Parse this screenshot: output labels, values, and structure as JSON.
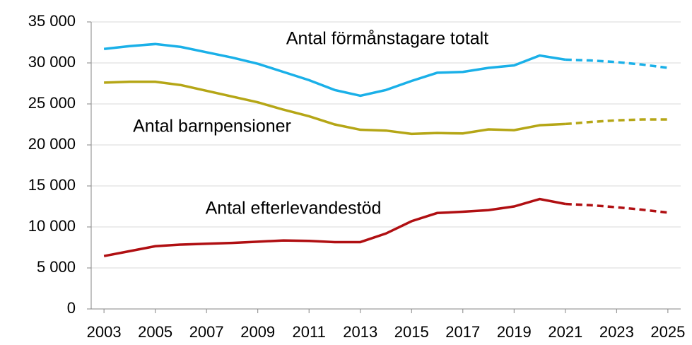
{
  "chart_data": {
    "type": "line",
    "x": [
      2003,
      2004,
      2005,
      2006,
      2007,
      2008,
      2009,
      2010,
      2011,
      2012,
      2013,
      2014,
      2015,
      2016,
      2017,
      2018,
      2019,
      2020,
      2021,
      2022,
      2023,
      2024,
      2025
    ],
    "series": [
      {
        "name": "Antal förmånstagare totalt",
        "color": "#1ab0e8",
        "values": [
          31700,
          32050,
          32300,
          31950,
          31300,
          30650,
          29900,
          28900,
          27900,
          26700,
          26000,
          26700,
          27800,
          28800,
          28900,
          29400,
          29700,
          30900,
          30400,
          30300,
          30100,
          29800,
          29400
        ]
      },
      {
        "name": "Antal barnpensioner",
        "color": "#b5a616",
        "values": [
          27600,
          27700,
          27700,
          27300,
          26600,
          25900,
          25200,
          24300,
          23500,
          22500,
          21850,
          21750,
          21350,
          21450,
          21400,
          21900,
          21800,
          22400,
          22550,
          22800,
          23000,
          23100,
          23100
        ]
      },
      {
        "name": "Antal efterlevandestöd",
        "color": "#b00f12",
        "values": [
          6450,
          7050,
          7650,
          7850,
          7950,
          8050,
          8200,
          8350,
          8300,
          8150,
          8150,
          9200,
          10700,
          11700,
          11850,
          12050,
          12500,
          13400,
          12800,
          12650,
          12400,
          12100,
          11750
        ]
      }
    ],
    "forecast_start": 2021,
    "xlim": [
      2002.5,
      2025.5
    ],
    "xticks": [
      2003,
      2005,
      2007,
      2009,
      2011,
      2013,
      2015,
      2017,
      2019,
      2021,
      2023,
      2025
    ],
    "ylim": [
      0,
      35000
    ],
    "yticks": [
      0,
      {
        "value": 5000,
        "label": "5 000"
      },
      {
        "value": 10000,
        "label": "10 000"
      },
      {
        "value": 15000,
        "label": "15 000"
      },
      {
        "value": 20000,
        "label": "20 000"
      },
      {
        "value": 25000,
        "label": "25 000"
      },
      {
        "value": 30000,
        "label": "30 000"
      },
      {
        "value": 35000,
        "label": "35 000"
      }
    ],
    "grid": true
  }
}
